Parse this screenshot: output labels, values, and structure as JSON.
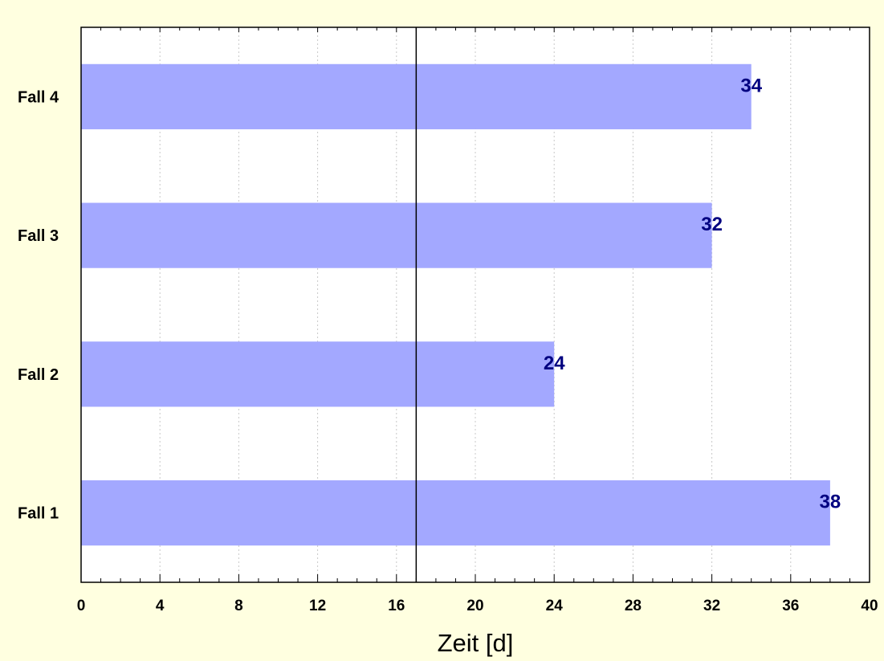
{
  "chart_data": {
    "type": "bar",
    "orientation": "horizontal",
    "categories": [
      "Fall 1",
      "Fall 2",
      "Fall 3",
      "Fall 4"
    ],
    "values": [
      38,
      24,
      32,
      34
    ],
    "data_labels": [
      "38",
      "24",
      "32",
      "34"
    ],
    "title": "",
    "xlabel": "Zeit [d]",
    "ylabel": "",
    "xlim": [
      0,
      40
    ],
    "x_ticks": [
      0,
      4,
      8,
      12,
      16,
      20,
      24,
      28,
      32,
      36,
      40
    ],
    "x_tick_labels": [
      "0",
      "4",
      "8",
      "12",
      "16",
      "20",
      "24",
      "28",
      "32",
      "36",
      "40"
    ],
    "reference_line_x": 17,
    "grid": "vertical dotted",
    "legend": "none",
    "colors": {
      "background": "#FFFFE0",
      "plot_area": "#FFFFFF",
      "bar": "#A3A8FF",
      "data_label": "#000080",
      "axis": "#000000",
      "grid": "#C8C8C8"
    }
  }
}
